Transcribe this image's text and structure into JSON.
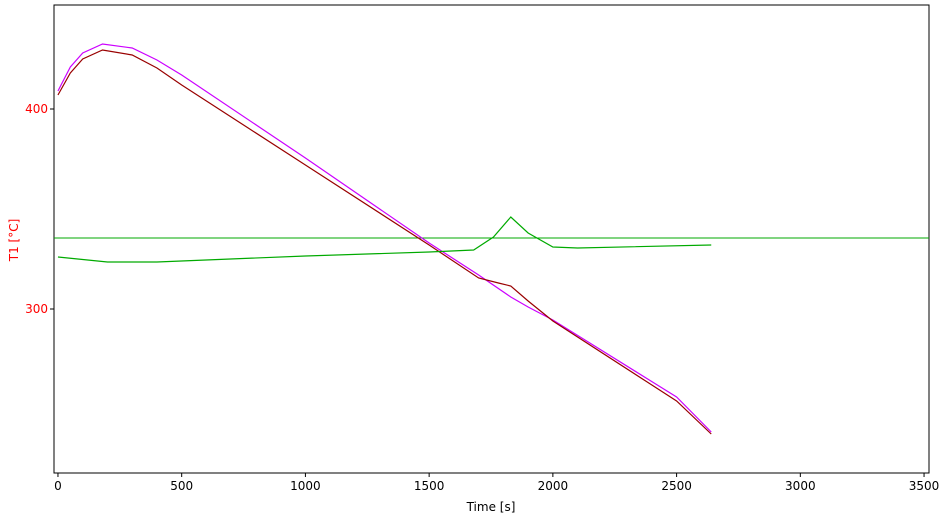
{
  "chart_data": {
    "type": "line",
    "x_label": "Time [s]",
    "y_label": "T1  [°C]",
    "xlim": [
      -16,
      3520
    ],
    "xticks": [
      0,
      500,
      1000,
      1500,
      2000,
      2500,
      3000,
      3500
    ],
    "ylim": [
      218,
      452
    ],
    "yticks": [
      300,
      400
    ],
    "y_axis_color": "#ff0000",
    "series": [
      {
        "color": "#cc00ff",
        "x": [
          0,
          50,
          100,
          180,
          300,
          400,
          500,
          1000,
          1500,
          1700,
          1830,
          1900,
          2000,
          2500,
          2640
        ],
        "values": [
          409,
          421,
          428,
          432.5,
          430.5,
          424.5,
          417,
          375.5,
          333,
          317,
          306,
          301,
          294.5,
          256,
          238.5
        ]
      },
      {
        "color": "#990000",
        "x": [
          0,
          50,
          100,
          180,
          300,
          400,
          500,
          1000,
          1500,
          1700,
          1780,
          1830,
          1900,
          2000,
          2500,
          2640
        ],
        "values": [
          407,
          418,
          425,
          429.5,
          427,
          420.5,
          412,
          372,
          332,
          315.5,
          313,
          311.5,
          304,
          294,
          254,
          237.5
        ]
      },
      {
        "color": "#00aa00",
        "x": [
          0,
          200,
          400,
          1000,
          1500,
          1680,
          1760,
          1830,
          1900,
          2000,
          2100,
          2640
        ],
        "values": [
          326,
          323.5,
          323.5,
          326.5,
          328.5,
          329.5,
          336,
          346,
          338,
          331,
          330.5,
          332
        ]
      }
    ],
    "reference_line": {
      "value": 335.5,
      "color": "#00aa00"
    }
  }
}
